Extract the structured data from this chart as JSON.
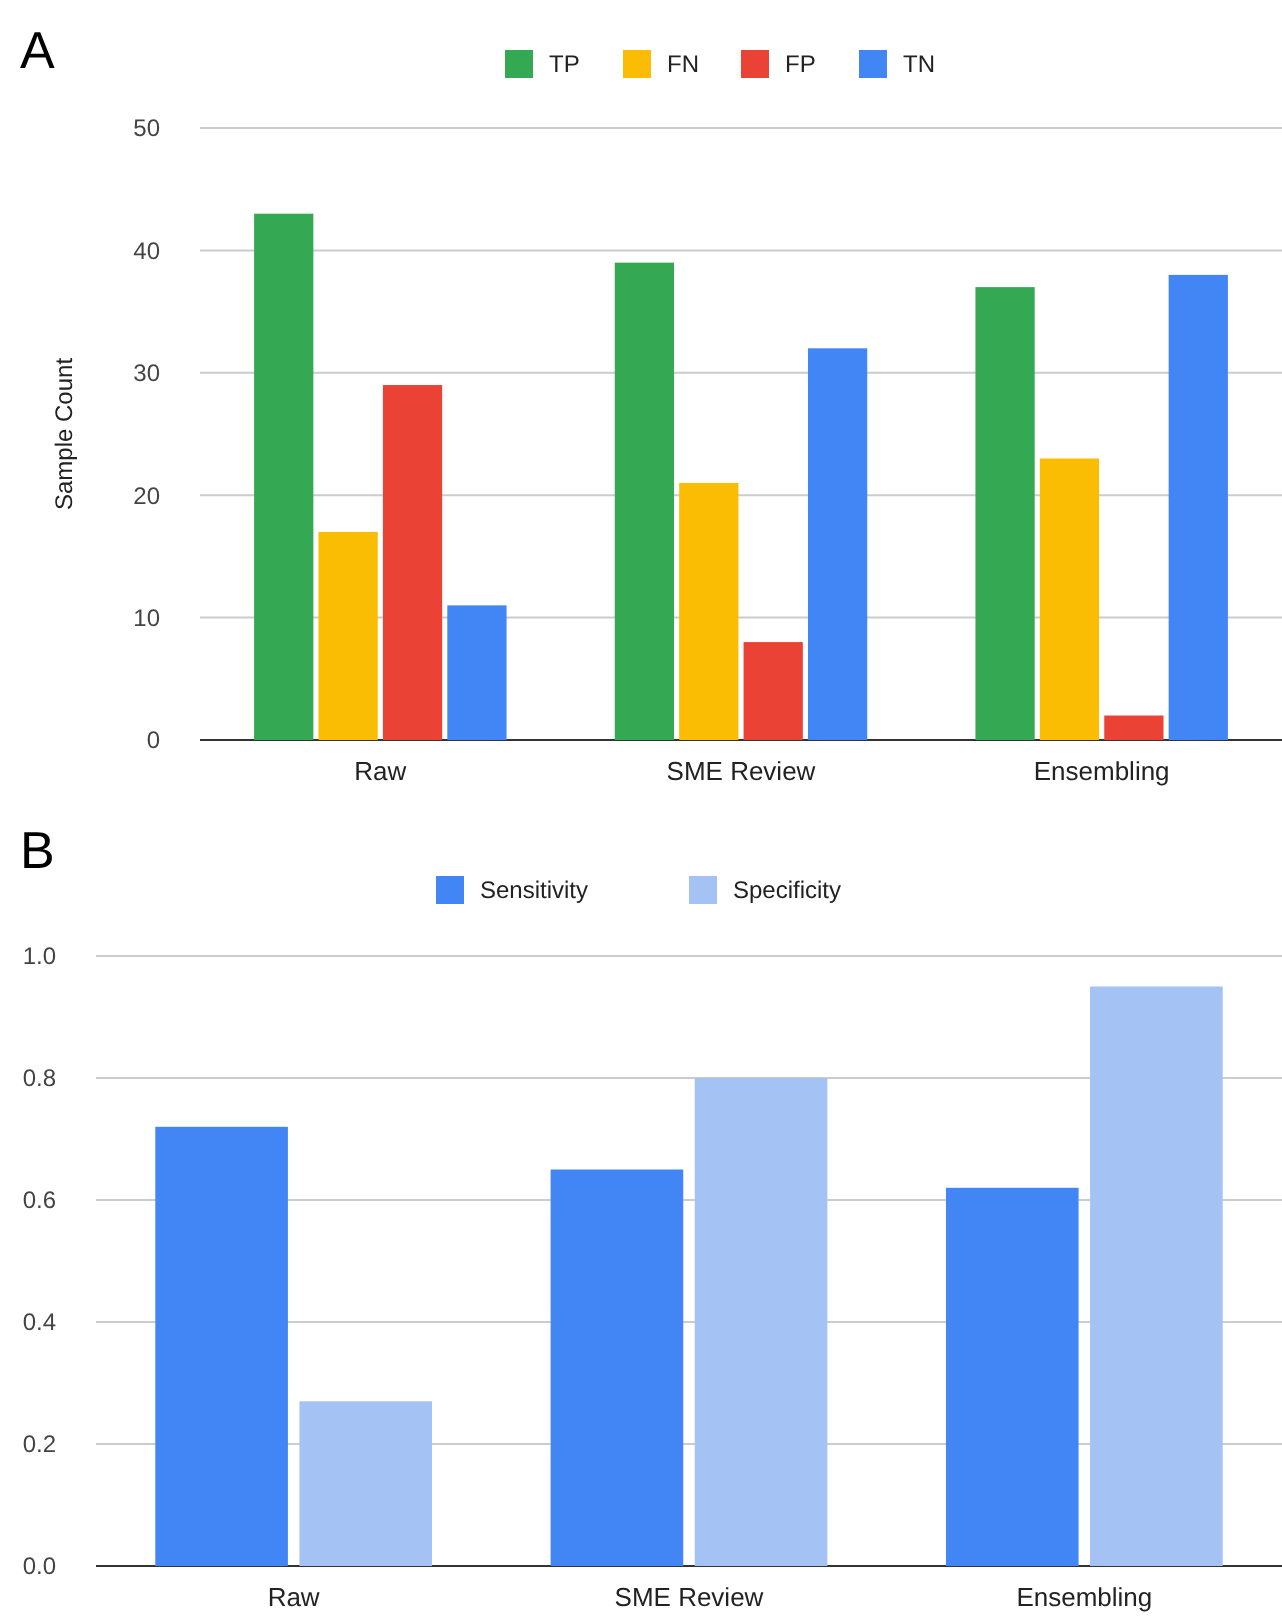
{
  "chart_data": [
    {
      "type": "bar",
      "title": "A",
      "ylabel": "Sample Count",
      "categories": [
        "Raw",
        "SME Review",
        "Ensembling"
      ],
      "series": [
        {
          "name": "TP",
          "color": "#34a853",
          "values": [
            43,
            39,
            37
          ]
        },
        {
          "name": "FN",
          "color": "#fbbc04",
          "values": [
            17,
            21,
            23
          ]
        },
        {
          "name": "FP",
          "color": "#ea4335",
          "values": [
            29,
            8,
            2
          ]
        },
        {
          "name": "TN",
          "color": "#4285f4",
          "values": [
            11,
            32,
            38
          ]
        }
      ],
      "ylim": [
        0,
        50
      ],
      "yticks": [
        0,
        10,
        20,
        30,
        40,
        50
      ],
      "grid": "y",
      "legend": "top"
    },
    {
      "type": "bar",
      "title": "B",
      "categories": [
        "Raw",
        "SME Review",
        "Ensembling"
      ],
      "series": [
        {
          "name": "Sensitivity",
          "color": "#4285f4",
          "values": [
            0.72,
            0.65,
            0.62
          ]
        },
        {
          "name": "Specificity",
          "color": "#a4c2f4",
          "values": [
            0.27,
            0.8,
            0.95
          ]
        }
      ],
      "ylim": [
        0,
        1
      ],
      "yticks": [
        {
          "value": 0,
          "label": "0.0"
        },
        {
          "value": 0.2,
          "label": "0.2"
        },
        {
          "value": 0.4,
          "label": "0.4"
        },
        {
          "value": 0.6,
          "label": "0.6"
        },
        {
          "value": 0.8,
          "label": "0.8"
        },
        {
          "value": 1,
          "label": "1.0"
        }
      ],
      "grid": "y",
      "legend": "top"
    }
  ]
}
